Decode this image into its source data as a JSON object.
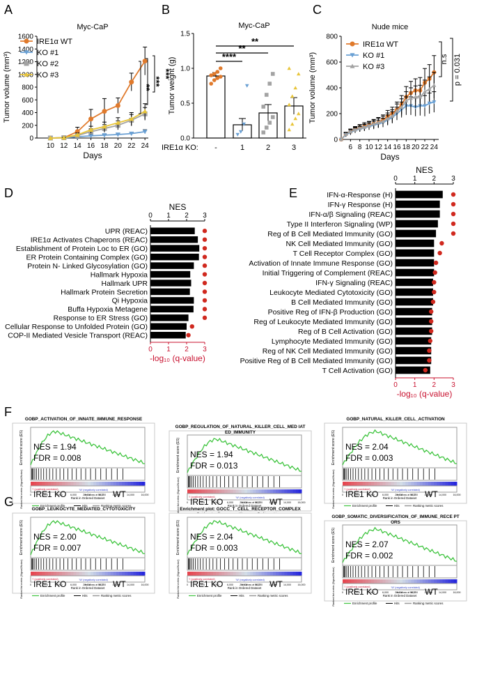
{
  "panel_labels": [
    "A",
    "B",
    "C",
    "D",
    "E",
    "F",
    "G"
  ],
  "chart_data": [
    {
      "panel": "A",
      "type": "line",
      "title": "Myc-CaP",
      "xlabel": "Days",
      "ylabel": "Tumor volume (mm³)",
      "x": [
        10,
        12,
        14,
        16,
        18,
        20,
        22,
        24
      ],
      "xticks": [
        10,
        12,
        14,
        16,
        18,
        20,
        22,
        24
      ],
      "xlim": [
        8,
        24.5
      ],
      "ylim": [
        0,
        1600
      ],
      "yticks": [
        0,
        200,
        400,
        600,
        800,
        1000,
        1200,
        1400,
        1600
      ],
      "series": [
        {
          "name": "IRE1α WT",
          "color": "#e07a2c",
          "marker": "circle",
          "values": [
            0,
            5,
            100,
            300,
            420,
            510,
            880,
            1210
          ],
          "errors": [
            0,
            10,
            70,
            150,
            200,
            120,
            140,
            220
          ]
        },
        {
          "name": "KO #1",
          "color": "#6aa0d4",
          "marker": "triangle-down",
          "values": [
            0,
            5,
            20,
            35,
            45,
            55,
            70,
            100
          ],
          "errors": [
            0,
            3,
            10,
            15,
            15,
            20,
            20,
            30
          ]
        },
        {
          "name": "KO #2",
          "color": "#a3a3a3",
          "marker": "square",
          "values": [
            0,
            5,
            40,
            100,
            150,
            200,
            280,
            380
          ],
          "errors": [
            0,
            5,
            25,
            45,
            60,
            70,
            90,
            100
          ]
        },
        {
          "name": "KO #3",
          "color": "#e8c53a",
          "marker": "triangle-up",
          "values": [
            0,
            5,
            50,
            130,
            180,
            240,
            300,
            420
          ],
          "errors": [
            0,
            5,
            30,
            55,
            70,
            80,
            100,
            120
          ]
        }
      ],
      "annotations": [
        "**",
        "***",
        "***"
      ]
    },
    {
      "panel": "B",
      "type": "bar",
      "title": "Myc-CaP",
      "ylabel": "Tumor weight (g)",
      "xlabel": "IRE1α KO:",
      "categories": [
        "-",
        "1",
        "2",
        "3"
      ],
      "values": [
        0.89,
        0.19,
        0.36,
        0.46
      ],
      "errors": [
        0.05,
        0.09,
        0.12,
        0.12
      ],
      "colors": [
        "#e07a2c",
        "#6aa0d4",
        "#a3a3a3",
        "#e8c53a"
      ],
      "markers": [
        "circle",
        "triangle-down",
        "square",
        "triangle-up"
      ],
      "points": [
        [
          0.78,
          0.83,
          0.86,
          0.88,
          0.9,
          0.92,
          0.95,
          1.0
        ],
        [
          0.05,
          0.09,
          0.2,
          0.75
        ],
        [
          0.08,
          0.15,
          0.22,
          0.3,
          0.45,
          0.62,
          0.78,
          0.92
        ],
        [
          0.12,
          0.2,
          0.28,
          0.35,
          0.48,
          0.6,
          0.72,
          0.92,
          1.0
        ]
      ],
      "ylim": [
        0,
        1.5
      ],
      "yticks": [
        0.0,
        0.5,
        1.0,
        1.5
      ],
      "annotations": [
        "**",
        "**",
        "****"
      ]
    },
    {
      "panel": "C",
      "type": "line",
      "title": "Nude mice",
      "xlabel": "Days",
      "ylabel": "Tumor volume (mm³)",
      "x": [
        4,
        5,
        6,
        7,
        8,
        9,
        10,
        11,
        12,
        13,
        14,
        15,
        16,
        17,
        18,
        19,
        20,
        21,
        22,
        23,
        24
      ],
      "xticks": [
        6,
        8,
        10,
        12,
        14,
        16,
        18,
        20,
        22,
        24
      ],
      "xlim": [
        4,
        25
      ],
      "ylim": [
        0,
        800
      ],
      "yticks": [
        0,
        200,
        400,
        600,
        800
      ],
      "series": [
        {
          "name": "IRE1α WT",
          "color": "#e07a2c",
          "marker": "circle",
          "values": [
            0,
            40,
            60,
            80,
            90,
            100,
            110,
            120,
            130,
            150,
            180,
            200,
            230,
            270,
            330,
            360,
            380,
            380,
            440,
            470,
            520
          ],
          "errors": [
            0,
            15,
            20,
            20,
            25,
            30,
            30,
            35,
            40,
            40,
            45,
            50,
            60,
            70,
            80,
            90,
            90,
            100,
            110,
            110,
            130
          ]
        },
        {
          "name": "KO #1",
          "color": "#6aa0d4",
          "marker": "triangle-down",
          "values": [
            0,
            35,
            55,
            70,
            80,
            90,
            100,
            110,
            120,
            130,
            150,
            170,
            200,
            230,
            260,
            260,
            250,
            260,
            260,
            280,
            290
          ],
          "errors": [
            0,
            15,
            20,
            20,
            20,
            25,
            25,
            30,
            30,
            35,
            40,
            45,
            50,
            60,
            70,
            70,
            70,
            75,
            80,
            80,
            80
          ]
        },
        {
          "name": "KO #3",
          "color": "#a3a3a3",
          "marker": "triangle-up",
          "values": [
            0,
            40,
            60,
            75,
            85,
            95,
            105,
            120,
            130,
            140,
            160,
            180,
            220,
            250,
            300,
            320,
            330,
            330,
            370,
            390,
            420
          ],
          "errors": [
            0,
            15,
            20,
            20,
            25,
            25,
            30,
            30,
            35,
            40,
            45,
            50,
            55,
            65,
            70,
            80,
            85,
            90,
            90,
            95,
            100
          ]
        }
      ],
      "annotations": [
        "n.s",
        "p = 0.031"
      ]
    },
    {
      "panel": "D",
      "type": "bar",
      "orientation": "horizontal",
      "xlabel_top": "NES",
      "xlabel_bottom": "-log₁₀ (q-value)",
      "xlim": [
        0,
        3
      ],
      "xticks": [
        0,
        1,
        2,
        3
      ],
      "categories": [
        "UPR (REAC)",
        "IRE1α Activates Chaperons (REAC)",
        "Establishment of Protein Loc to ER (GO)",
        "ER Protein Containing Complex (GO)",
        "Protein N- Linked Glycosylation (GO)",
        "Hallmark Hypoxia",
        "Hallmark UPR",
        "Hallmark Protein Secretion",
        "Qi Hypoxia",
        "Buffa Hypoxia Metagene",
        "Response to ER Stress (GO)",
        "Cellular Response to Unfolded Protein (GO)",
        "COP-II Mediated Vesicle Transport (REAC)"
      ],
      "nes": [
        2.45,
        2.62,
        2.7,
        2.68,
        2.4,
        2.2,
        2.25,
        2.18,
        2.4,
        2.38,
        2.1,
        2.0,
        1.95
      ],
      "log_q": [
        3.0,
        3.0,
        3.0,
        3.0,
        3.0,
        3.0,
        3.0,
        3.0,
        3.0,
        3.0,
        3.0,
        2.3,
        2.1
      ]
    },
    {
      "panel": "E",
      "type": "bar",
      "orientation": "horizontal",
      "xlabel_top": "NES",
      "xlabel_bottom": "-log₁₀ (q-value)",
      "xlim": [
        0,
        3
      ],
      "xticks": [
        0,
        1,
        2,
        3
      ],
      "categories": [
        "IFN-α-Response (H)",
        "IFN-γ Response (H)",
        "IFN-α/β Signaling (REAC)",
        "Type II Interferon Signaling (WP)",
        "Reg of B Cell Mediated Immunity (GO)",
        "NK Cell Mediated Immunity (GO)",
        "T Cell Receptor Complex (GO)",
        "Activation of Innate Immune Response (GO)",
        "Initial Triggering of Complement (REAC)",
        "IFN-γ Signaling (REAC)",
        "Leukocyte Mediated Cytotoxicity (GO)",
        "B Cell Mediated Immunity (GO)",
        "Positive Reg of IFN-β Production (GO)",
        "Reg of Leukocyte Mediated Immunity (GO)",
        "Reg of B Cell Activation (GO)",
        "Lymphocyte Mediated Immunity (GO)",
        "Reg of NK Cell Mediated Immunity (GO)",
        "Positive Reg of B Cell Mediated Immunity (GO)",
        "T Cell Activation (GO)"
      ],
      "nes": [
        2.45,
        2.3,
        2.3,
        2.2,
        2.1,
        2.0,
        2.0,
        2.0,
        2.0,
        1.95,
        1.95,
        1.95,
        1.9,
        1.9,
        1.9,
        1.85,
        1.85,
        1.85,
        1.8
      ],
      "log_q": [
        3.0,
        3.0,
        3.0,
        3.0,
        3.0,
        2.4,
        2.3,
        2.1,
        2.05,
        2.0,
        2.0,
        1.95,
        1.85,
        1.85,
        1.85,
        1.8,
        1.75,
        1.75,
        1.55
      ]
    }
  ],
  "gsea": [
    {
      "panel": "F",
      "title": "GOBP_ACTIVATION_OF_INNATE_IMMUNE_RESPONSE",
      "nes": "NES = 1.94",
      "fdr": "FDR = 0.008"
    },
    {
      "panel": "F",
      "title": "GOBP_REGULATION_OF_NATURAL_KILLER_CELL_MED IATED_IMMUNITY",
      "nes": "NES = 1.94",
      "fdr": "FDR = 0.013"
    },
    {
      "panel": "F",
      "title": "GOBP_NATURAL_KILLER_CELL_ACTIVATION",
      "nes": "NES = 2.04",
      "fdr": "FDR = 0.003"
    },
    {
      "panel": "G",
      "title": "GOBP_LEUKOCYTE_MEDIATED_CYTOTOXICITY",
      "nes": "NES = 2.00",
      "fdr": "FDR = 0.007"
    },
    {
      "panel": "G",
      "title": "Enrichment plot: GOCC_T_CELL_RECEPTOR_COMPLEX",
      "nes": "NES = 2.04",
      "fdr": "FDR = 0.003"
    },
    {
      "panel": "G",
      "title": "GOBP_SOMATIC_DIVERSIFICATION_OF_IMMUNE_RECE PTORS",
      "nes": "NES = 2.07",
      "fdr": "FDR = 0.002"
    }
  ],
  "gsea_common": {
    "left_label": "IRE1 KO",
    "right_label": "WT",
    "es_ylabel": "Enrichment score (ES)",
    "metric_ylabel": "Ranked list metric (Signal2Noise)",
    "xlabel": "Rank in Ordered Dataset",
    "pos_text": "'I' (positively correlated)",
    "neg_text": "'W' (negatively correlated)",
    "zero_text": "Zero cross at 9617",
    "xticks": [
      "0",
      "2,000",
      "4,000",
      "6,000",
      "8,000",
      "10,000",
      "12,000",
      "14,000",
      "16,000"
    ],
    "legend": [
      "Enrichment profile",
      "Hits",
      "Ranking metric scores"
    ]
  }
}
